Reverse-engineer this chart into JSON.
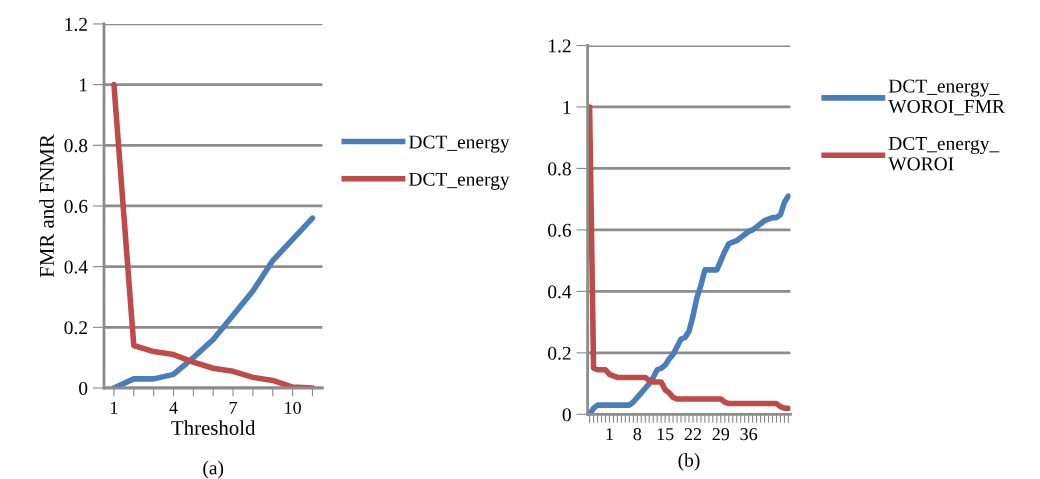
{
  "chart_data": [
    {
      "type": "line",
      "xlabel": "Threshold",
      "ylabel": "FMR and FNMR",
      "annotations": [
        "(a)"
      ],
      "categories": [
        "1",
        null,
        null,
        "4",
        null,
        null,
        "7",
        null,
        null,
        "10",
        null
      ],
      "series": [
        {
          "name": "DCT_energy",
          "color": "#4a7ebb",
          "values": [
            0.0,
            0.03,
            0.03,
            0.045,
            0.1,
            0.16,
            0.24,
            0.32,
            0.42,
            0.49,
            0.56
          ]
        },
        {
          "name": "DCT_energy",
          "color": "#be4b48",
          "values": [
            1.0,
            0.14,
            0.12,
            0.11,
            0.085,
            0.065,
            0.055,
            0.035,
            0.025,
            0.003,
            0.0
          ]
        }
      ],
      "ylim": [
        0,
        1.2
      ],
      "yticks": [
        0,
        0.2,
        0.4,
        0.6,
        0.8,
        1,
        1.2
      ],
      "grid": "y",
      "legend": "right",
      "marker": "none",
      "line_style": "solid"
    },
    {
      "type": "line",
      "annotations": [
        "(b)"
      ],
      "categories": [
        null,
        null,
        null,
        null,
        null,
        "1",
        null,
        null,
        null,
        null,
        null,
        null,
        "8",
        null,
        null,
        null,
        null,
        null,
        null,
        "15",
        null,
        null,
        null,
        null,
        null,
        null,
        "22",
        null,
        null,
        null,
        null,
        null,
        null,
        "29",
        null,
        null,
        null,
        null,
        null,
        null,
        "36",
        null,
        null,
        null,
        null,
        null,
        null,
        null,
        null,
        null,
        null
      ],
      "series": [
        {
          "name": "DCT_energy_\nWOROI_FMR",
          "color": "#4a7ebb",
          "values": [
            0,
            0.02,
            0.03,
            0.03,
            0.03,
            0.03,
            0.03,
            0.03,
            0.03,
            0.03,
            0.03,
            0.04,
            0.055,
            0.07,
            0.085,
            0.1,
            0.12,
            0.145,
            0.15,
            0.16,
            0.18,
            0.195,
            0.22,
            0.245,
            0.25,
            0.27,
            0.32,
            0.38,
            0.42,
            0.47,
            0.47,
            0.47,
            0.47,
            0.5,
            0.53,
            0.555,
            0.56,
            0.565,
            0.575,
            0.585,
            0.595,
            0.6,
            0.61,
            0.62,
            0.63,
            0.635,
            0.64,
            0.64,
            0.65,
            0.69,
            0.71
          ]
        },
        {
          "name": "DCT_energy_\nWOROI",
          "color": "#be4b48",
          "values": [
            1.0,
            0.15,
            0.145,
            0.145,
            0.145,
            0.13,
            0.125,
            0.12,
            0.12,
            0.12,
            0.12,
            0.12,
            0.12,
            0.12,
            0.12,
            0.11,
            0.105,
            0.105,
            0.105,
            0.08,
            0.07,
            0.055,
            0.05,
            0.05,
            0.05,
            0.05,
            0.05,
            0.05,
            0.05,
            0.05,
            0.05,
            0.05,
            0.05,
            0.05,
            0.04,
            0.035,
            0.035,
            0.035,
            0.035,
            0.035,
            0.035,
            0.035,
            0.035,
            0.035,
            0.035,
            0.035,
            0.035,
            0.035,
            0.025,
            0.02,
            0.02
          ]
        }
      ],
      "ylim": [
        0,
        1.2
      ],
      "yticks": [
        0,
        0.2,
        0.4,
        0.6,
        0.8,
        1,
        1.2
      ],
      "grid": "y",
      "legend": "right",
      "marker": "none",
      "line_style": "solid"
    }
  ]
}
